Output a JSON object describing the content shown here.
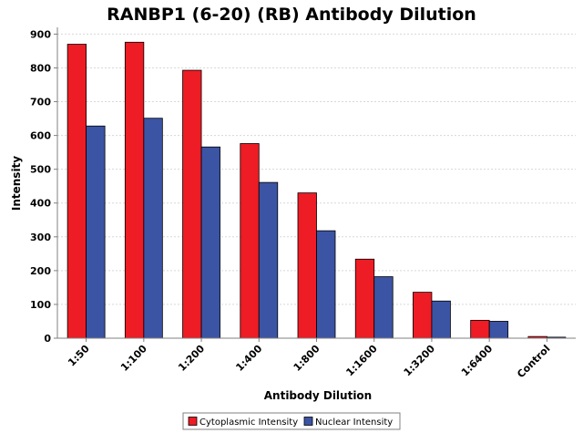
{
  "chart_data": {
    "type": "bar",
    "title": "RANBP1 (6-20) (RB) Antibody Dilution",
    "xlabel": "Antibody Dilution",
    "ylabel": "Intensity",
    "ylim": [
      0,
      920
    ],
    "yticks": [
      0,
      100,
      200,
      300,
      400,
      500,
      600,
      700,
      800,
      900
    ],
    "categories": [
      "1:50",
      "1:100",
      "1:200",
      "1:400",
      "1:800",
      "1:1600",
      "1:3200",
      "1:6400",
      "Control"
    ],
    "series": [
      {
        "name": "Cytoplasmic Intensity",
        "color": "#ee1c24",
        "values": [
          870,
          876,
          793,
          576,
          430,
          234,
          136,
          53,
          5
        ]
      },
      {
        "name": "Nuclear Intensity",
        "color": "#3c54a4",
        "values": [
          628,
          651,
          566,
          461,
          318,
          182,
          110,
          50,
          3
        ]
      }
    ],
    "grid": true,
    "legend_position": "bottom-center"
  }
}
